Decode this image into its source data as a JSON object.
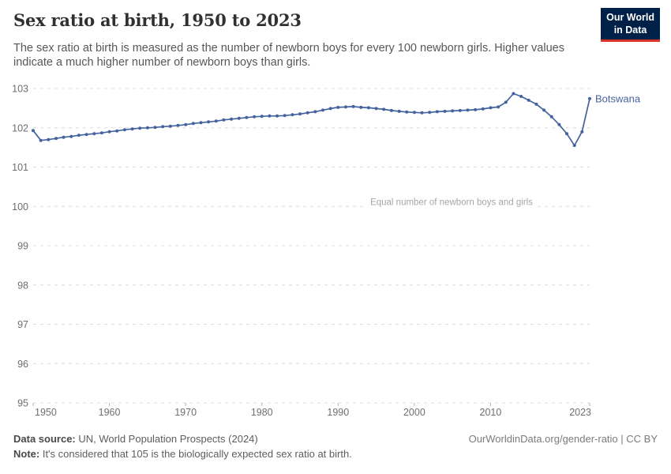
{
  "header": {
    "title": "Sex ratio at birth, 1950 to 2023",
    "subtitle": "The sex ratio at birth is measured as the number of newborn boys for every 100 newborn girls. Higher values indicate a much higher number of newborn boys than girls.",
    "logo": {
      "line1": "Our World",
      "line2": "in Data",
      "bg_color": "#002147",
      "bar_color": "#dc352c"
    }
  },
  "chart_data": {
    "type": "line",
    "title": "Sex ratio at birth, 1950 to 2023",
    "xlabel": "",
    "ylabel": "",
    "xlim": [
      1950,
      2023
    ],
    "ylim": [
      95,
      103
    ],
    "yticks": [
      95,
      96,
      97,
      98,
      99,
      100,
      101,
      102,
      103
    ],
    "xticks": [
      1950,
      1960,
      1970,
      1980,
      1990,
      2000,
      2010,
      2023
    ],
    "grid": "horizontal-dashed",
    "legend_position": "end-of-line-label",
    "annotation": {
      "text": "Equal number of newborn boys and girls",
      "y": 100
    },
    "series": [
      {
        "name": "Botswana",
        "color": "#44639e",
        "points": [
          [
            1950,
            101.93
          ],
          [
            1951,
            101.68
          ],
          [
            1952,
            101.7
          ],
          [
            1953,
            101.73
          ],
          [
            1954,
            101.76
          ],
          [
            1955,
            101.78
          ],
          [
            1956,
            101.81
          ],
          [
            1957,
            101.83
          ],
          [
            1958,
            101.85
          ],
          [
            1959,
            101.87
          ],
          [
            1960,
            101.9
          ],
          [
            1961,
            101.92
          ],
          [
            1962,
            101.95
          ],
          [
            1963,
            101.97
          ],
          [
            1964,
            101.99
          ],
          [
            1965,
            102.0
          ],
          [
            1966,
            102.01
          ],
          [
            1967,
            102.03
          ],
          [
            1968,
            102.04
          ],
          [
            1969,
            102.06
          ],
          [
            1970,
            102.08
          ],
          [
            1971,
            102.11
          ],
          [
            1972,
            102.13
          ],
          [
            1973,
            102.15
          ],
          [
            1974,
            102.17
          ],
          [
            1975,
            102.2
          ],
          [
            1976,
            102.22
          ],
          [
            1977,
            102.24
          ],
          [
            1978,
            102.26
          ],
          [
            1979,
            102.28
          ],
          [
            1980,
            102.29
          ],
          [
            1981,
            102.3
          ],
          [
            1982,
            102.3
          ],
          [
            1983,
            102.31
          ],
          [
            1984,
            102.33
          ],
          [
            1985,
            102.35
          ],
          [
            1986,
            102.38
          ],
          [
            1987,
            102.41
          ],
          [
            1988,
            102.45
          ],
          [
            1989,
            102.49
          ],
          [
            1990,
            102.52
          ],
          [
            1991,
            102.53
          ],
          [
            1992,
            102.54
          ],
          [
            1993,
            102.52
          ],
          [
            1994,
            102.51
          ],
          [
            1995,
            102.49
          ],
          [
            1996,
            102.47
          ],
          [
            1997,
            102.44
          ],
          [
            1998,
            102.42
          ],
          [
            1999,
            102.4
          ],
          [
            2000,
            102.39
          ],
          [
            2001,
            102.38
          ],
          [
            2002,
            102.39
          ],
          [
            2003,
            102.41
          ],
          [
            2004,
            102.42
          ],
          [
            2005,
            102.43
          ],
          [
            2006,
            102.44
          ],
          [
            2007,
            102.45
          ],
          [
            2008,
            102.46
          ],
          [
            2009,
            102.48
          ],
          [
            2010,
            102.51
          ],
          [
            2011,
            102.53
          ],
          [
            2012,
            102.65
          ],
          [
            2013,
            102.87
          ],
          [
            2014,
            102.8
          ],
          [
            2015,
            102.7
          ],
          [
            2016,
            102.6
          ],
          [
            2017,
            102.45
          ],
          [
            2018,
            102.28
          ],
          [
            2019,
            102.08
          ],
          [
            2020,
            101.85
          ],
          [
            2021,
            101.55
          ],
          [
            2022,
            101.9
          ],
          [
            2023,
            102.74
          ]
        ]
      }
    ]
  },
  "footer": {
    "datasource_label": "Data source:",
    "datasource_text": " UN, World Population Prospects (2024)",
    "note_label": "Note:",
    "note_text": " It's considered that 105 is the biologically expected sex ratio at birth.",
    "link_text": "OurWorldinData.org/gender-ratio | CC BY"
  }
}
